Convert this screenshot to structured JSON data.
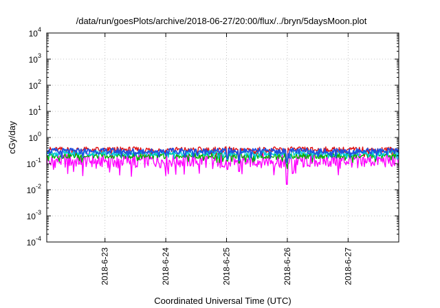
{
  "chart_data": {
    "type": "line",
    "title": "/data/run/goesPlots/archive/2018-06-27/20:00/flux/../bryn/5daysMoon.plot",
    "xlabel": "Coordinated Universal Time (UTC)",
    "ylabel": "cGy/day",
    "yscale": "log",
    "ylim": [
      0.0001,
      10000
    ],
    "y_ticks": [
      {
        "base": "10",
        "exp": "-4"
      },
      {
        "base": "10",
        "exp": "-3"
      },
      {
        "base": "10",
        "exp": "-2"
      },
      {
        "base": "10",
        "exp": "-1"
      },
      {
        "base": "10",
        "exp": "0"
      },
      {
        "base": "10",
        "exp": "1"
      },
      {
        "base": "10",
        "exp": "2"
      },
      {
        "base": "10",
        "exp": "3"
      },
      {
        "base": "10",
        "exp": "4"
      }
    ],
    "x_range_days": [
      "2018-06-22 01:00",
      "2018-06-27 20:00"
    ],
    "x_ticks": [
      "2018-6-23",
      "2018-6-24",
      "2018-6-25",
      "2018-6-26",
      "2018-6-27"
    ],
    "grid": true,
    "legend": "none",
    "series_colors": [
      "#ff00ff",
      "#e01010",
      "#00b000",
      "#00c8e0",
      "#2050e0"
    ],
    "series_levels": [
      0.13,
      0.34,
      0.2,
      0.25,
      0.3
    ],
    "notable_dips": [
      {
        "date": "2018-06-25 00:20",
        "value": 0.06
      },
      {
        "date": "2018-06-25 05:00",
        "value": 0.05
      },
      {
        "date": "2018-06-25 23:50",
        "value": 0.016
      }
    ]
  }
}
